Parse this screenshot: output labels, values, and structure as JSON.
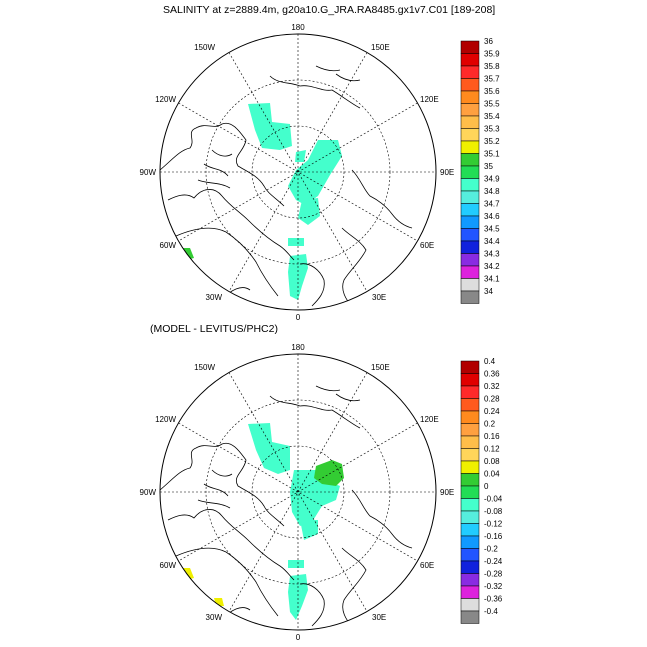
{
  "panels": [
    {
      "title": "SALINITY at z=2889.4m, g20a10.G_JRA.RA8485.gx1v7.C01 [189-208]",
      "longitude_labels": [
        "180",
        "150W",
        "150E",
        "120W",
        "120E",
        "90W",
        "90E",
        "60W",
        "60E",
        "30W",
        "30E",
        "0"
      ],
      "colorbar": {
        "labels": [
          "36",
          "35.9",
          "35.8",
          "35.7",
          "35.6",
          "35.5",
          "35.4",
          "35.3",
          "35.2",
          "35.1",
          "35",
          "34.9",
          "34.8",
          "34.7",
          "34.6",
          "34.5",
          "34.4",
          "34.3",
          "34.2",
          "34.1",
          "34"
        ],
        "colors": [
          "#b10000",
          "#e00000",
          "#ff2a2a",
          "#ff5a1e",
          "#ff8a1e",
          "#ffa040",
          "#ffbe4a",
          "#ffd55a",
          "#f0f000",
          "#33cc33",
          "#22dd55",
          "#44ffcc",
          "#55eedd",
          "#22ccff",
          "#1199ff",
          "#2255ff",
          "#1122dd",
          "#8a2be2",
          "#dd22dd",
          "#dddddd",
          "#888888"
        ]
      }
    },
    {
      "title": "(MODEL - LEVITUS/PHC2)",
      "longitude_labels": [
        "180",
        "150W",
        "150E",
        "120W",
        "120E",
        "90W",
        "90E",
        "60W",
        "60E",
        "30W",
        "30E",
        "0"
      ],
      "colorbar": {
        "labels": [
          "0.4",
          "0.36",
          "0.32",
          "0.28",
          "0.24",
          "0.2",
          "0.16",
          "0.12",
          "0.08",
          "0.04",
          "0",
          "-0.04",
          "-0.08",
          "-0.12",
          "-0.16",
          "-0.2",
          "-0.24",
          "-0.28",
          "-0.32",
          "-0.36",
          "-0.4"
        ],
        "colors": [
          "#b10000",
          "#e00000",
          "#ff2a2a",
          "#ff5a1e",
          "#ff8a1e",
          "#ffa040",
          "#ffbe4a",
          "#ffd55a",
          "#f0f000",
          "#33cc33",
          "#22dd55",
          "#44ffcc",
          "#55eedd",
          "#22ccff",
          "#1199ff",
          "#2255ff",
          "#1122dd",
          "#8a2be2",
          "#dd22dd",
          "#dddddd",
          "#888888"
        ]
      }
    }
  ],
  "fill_colors": {
    "cyan": "#44ffcc",
    "green": "#33cc33",
    "yellow": "#f0f000"
  }
}
